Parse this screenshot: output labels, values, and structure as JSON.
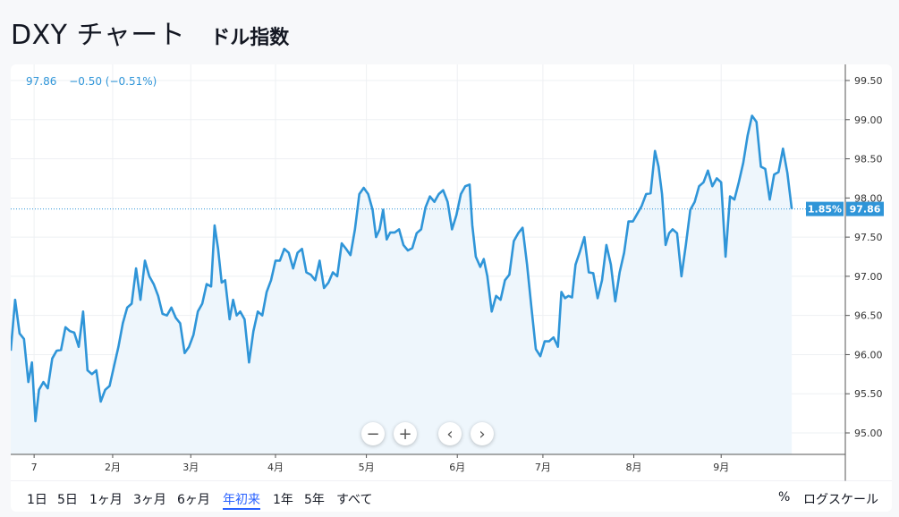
{
  "header": {
    "title": "DXY チャート",
    "subtitle": "ドル指数"
  },
  "legend": {
    "price": "97.86",
    "change": "−0.50 (−0.51%)"
  },
  "price_tag": {
    "percent": "1.85%",
    "value": "97.86"
  },
  "controls": {
    "zoom_out": "−",
    "zoom_in": "+",
    "prev": "‹",
    "next": "›"
  },
  "ranges": [
    {
      "label": "1日"
    },
    {
      "label": "5日"
    },
    {
      "label": "1ヶ月"
    },
    {
      "label": "3ヶ月"
    },
    {
      "label": "6ヶ月"
    },
    {
      "label": "年初来",
      "active": true
    },
    {
      "label": "1年"
    },
    {
      "label": "5年"
    },
    {
      "label": "すべて"
    }
  ],
  "right_buttons": {
    "percent": "%",
    "log": "ログスケール"
  },
  "colors": {
    "line": "#2f95d8",
    "fill": "#eef6fc",
    "active": "#2962ff",
    "tag": "#2f95d8"
  },
  "chart_data": {
    "type": "area",
    "y_ticks": [
      "95.00",
      "95.50",
      "96.00",
      "96.50",
      "97.00",
      "97.50",
      "98.00",
      "98.50",
      "99.00",
      "99.50"
    ],
    "ylim": [
      94.75,
      99.75
    ],
    "x_ticks": [
      {
        "label": "7",
        "t": 0.065
      },
      {
        "label": "2月",
        "t": 0.955
      },
      {
        "label": "3月",
        "t": 1.84
      },
      {
        "label": "4月",
        "t": 2.8
      },
      {
        "label": "5月",
        "t": 3.83
      },
      {
        "label": "6月",
        "t": 4.86
      },
      {
        "label": "7月",
        "t": 5.83
      },
      {
        "label": "8月",
        "t": 6.86
      },
      {
        "label": "9月",
        "t": 7.85
      }
    ],
    "xlim": [
      -0.2,
      8.75
    ],
    "last_value": 97.86,
    "series": [
      {
        "values": [
          [
            -0.2,
            96.05
          ],
          [
            -0.15,
            96.7
          ],
          [
            -0.1,
            96.27
          ],
          [
            -0.05,
            96.2
          ],
          [
            0.0,
            95.65
          ],
          [
            0.04,
            95.9
          ],
          [
            0.08,
            95.15
          ],
          [
            0.12,
            95.55
          ],
          [
            0.17,
            95.65
          ],
          [
            0.22,
            95.57
          ],
          [
            0.27,
            95.95
          ],
          [
            0.32,
            96.05
          ],
          [
            0.37,
            96.06
          ],
          [
            0.42,
            96.35
          ],
          [
            0.47,
            96.3
          ],
          [
            0.52,
            96.28
          ],
          [
            0.57,
            96.1
          ],
          [
            0.62,
            96.55
          ],
          [
            0.67,
            95.8
          ],
          [
            0.72,
            95.75
          ],
          [
            0.77,
            95.8
          ],
          [
            0.82,
            95.4
          ],
          [
            0.87,
            95.55
          ],
          [
            0.92,
            95.6
          ],
          [
            0.97,
            95.85
          ],
          [
            1.02,
            96.1
          ],
          [
            1.07,
            96.4
          ],
          [
            1.12,
            96.6
          ],
          [
            1.17,
            96.65
          ],
          [
            1.22,
            97.1
          ],
          [
            1.27,
            96.7
          ],
          [
            1.32,
            97.2
          ],
          [
            1.37,
            97.0
          ],
          [
            1.42,
            96.9
          ],
          [
            1.47,
            96.75
          ],
          [
            1.52,
            96.52
          ],
          [
            1.57,
            96.5
          ],
          [
            1.62,
            96.6
          ],
          [
            1.67,
            96.47
          ],
          [
            1.72,
            96.4
          ],
          [
            1.77,
            96.02
          ],
          [
            1.82,
            96.1
          ],
          [
            1.87,
            96.25
          ],
          [
            1.92,
            96.55
          ],
          [
            1.97,
            96.65
          ],
          [
            2.02,
            96.9
          ],
          [
            2.07,
            96.87
          ],
          [
            2.11,
            97.65
          ],
          [
            2.15,
            97.35
          ],
          [
            2.19,
            96.92
          ],
          [
            2.23,
            96.95
          ],
          [
            2.28,
            96.45
          ],
          [
            2.32,
            96.7
          ],
          [
            2.36,
            96.5
          ],
          [
            2.4,
            96.55
          ],
          [
            2.45,
            96.45
          ],
          [
            2.5,
            95.9
          ],
          [
            2.55,
            96.3
          ],
          [
            2.6,
            96.55
          ],
          [
            2.65,
            96.5
          ],
          [
            2.7,
            96.8
          ],
          [
            2.75,
            96.95
          ],
          [
            2.8,
            97.2
          ],
          [
            2.85,
            97.2
          ],
          [
            2.9,
            97.35
          ],
          [
            2.95,
            97.3
          ],
          [
            3.0,
            97.1
          ],
          [
            3.05,
            97.3
          ],
          [
            3.1,
            97.35
          ],
          [
            3.15,
            97.05
          ],
          [
            3.2,
            97.02
          ],
          [
            3.25,
            96.95
          ],
          [
            3.3,
            97.2
          ],
          [
            3.35,
            96.85
          ],
          [
            3.4,
            96.92
          ],
          [
            3.45,
            97.05
          ],
          [
            3.5,
            97.0
          ],
          [
            3.55,
            97.42
          ],
          [
            3.6,
            97.35
          ],
          [
            3.65,
            97.27
          ],
          [
            3.7,
            97.6
          ],
          [
            3.75,
            98.05
          ],
          [
            3.8,
            98.13
          ],
          [
            3.85,
            98.05
          ],
          [
            3.9,
            97.85
          ],
          [
            3.94,
            97.5
          ],
          [
            3.98,
            97.6
          ],
          [
            4.02,
            97.85
          ],
          [
            4.06,
            97.47
          ],
          [
            4.1,
            97.56
          ],
          [
            4.15,
            97.56
          ],
          [
            4.2,
            97.6
          ],
          [
            4.25,
            97.4
          ],
          [
            4.3,
            97.33
          ],
          [
            4.35,
            97.36
          ],
          [
            4.4,
            97.55
          ],
          [
            4.45,
            97.6
          ],
          [
            4.5,
            97.88
          ],
          [
            4.55,
            98.02
          ],
          [
            4.6,
            97.95
          ],
          [
            4.65,
            98.05
          ],
          [
            4.7,
            98.1
          ],
          [
            4.75,
            97.95
          ],
          [
            4.8,
            97.6
          ],
          [
            4.85,
            97.78
          ],
          [
            4.9,
            98.05
          ],
          [
            4.95,
            98.15
          ],
          [
            5.0,
            98.17
          ],
          [
            5.03,
            97.65
          ],
          [
            5.07,
            97.25
          ],
          [
            5.12,
            97.12
          ],
          [
            5.16,
            97.22
          ],
          [
            5.2,
            97.0
          ],
          [
            5.25,
            96.55
          ],
          [
            5.3,
            96.75
          ],
          [
            5.35,
            96.7
          ],
          [
            5.4,
            96.95
          ],
          [
            5.45,
            97.02
          ],
          [
            5.5,
            97.45
          ],
          [
            5.55,
            97.55
          ],
          [
            5.6,
            97.62
          ],
          [
            5.65,
            97.15
          ],
          [
            5.7,
            96.6
          ],
          [
            5.75,
            96.07
          ],
          [
            5.8,
            95.98
          ],
          [
            5.85,
            96.17
          ],
          [
            5.9,
            96.17
          ],
          [
            5.95,
            96.22
          ],
          [
            6.0,
            96.1
          ],
          [
            6.04,
            96.8
          ],
          [
            6.08,
            96.72
          ],
          [
            6.12,
            96.75
          ],
          [
            6.16,
            96.73
          ],
          [
            6.2,
            97.15
          ],
          [
            6.25,
            97.32
          ],
          [
            6.3,
            97.5
          ],
          [
            6.35,
            97.05
          ],
          [
            6.4,
            97.04
          ],
          [
            6.45,
            96.72
          ],
          [
            6.5,
            96.95
          ],
          [
            6.55,
            97.4
          ],
          [
            6.6,
            97.15
          ],
          [
            6.65,
            96.68
          ],
          [
            6.7,
            97.05
          ],
          [
            6.75,
            97.3
          ],
          [
            6.8,
            97.7
          ],
          [
            6.85,
            97.7
          ],
          [
            6.9,
            97.8
          ],
          [
            6.95,
            97.9
          ],
          [
            7.0,
            98.05
          ],
          [
            7.05,
            98.06
          ],
          [
            7.1,
            98.6
          ],
          [
            7.14,
            98.4
          ],
          [
            7.18,
            98.05
          ],
          [
            7.22,
            97.4
          ],
          [
            7.26,
            97.55
          ],
          [
            7.3,
            97.6
          ],
          [
            7.35,
            97.55
          ],
          [
            7.4,
            97.0
          ],
          [
            7.45,
            97.4
          ],
          [
            7.5,
            97.85
          ],
          [
            7.55,
            97.95
          ],
          [
            7.6,
            98.15
          ],
          [
            7.65,
            98.2
          ],
          [
            7.7,
            98.35
          ],
          [
            7.75,
            98.15
          ],
          [
            7.8,
            98.25
          ],
          [
            7.85,
            98.2
          ],
          [
            7.9,
            97.25
          ],
          [
            7.95,
            98.02
          ],
          [
            8.0,
            97.98
          ],
          [
            8.05,
            98.2
          ],
          [
            8.1,
            98.45
          ],
          [
            8.15,
            98.8
          ],
          [
            8.2,
            99.05
          ],
          [
            8.25,
            98.97
          ],
          [
            8.3,
            98.4
          ],
          [
            8.35,
            98.37
          ],
          [
            8.4,
            97.98
          ],
          [
            8.45,
            98.3
          ],
          [
            8.5,
            98.33
          ],
          [
            8.55,
            98.63
          ],
          [
            8.6,
            98.32
          ],
          [
            8.65,
            97.86
          ]
        ]
      }
    ]
  }
}
